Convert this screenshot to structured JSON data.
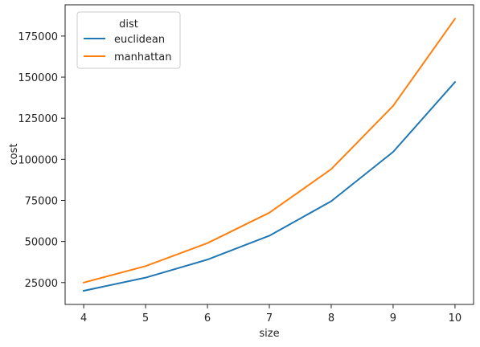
{
  "chart_data": {
    "type": "line",
    "xlabel": "size",
    "ylabel": "cost",
    "x": [
      4,
      5,
      6,
      7,
      8,
      9,
      10
    ],
    "xticks": [
      "4",
      "5",
      "6",
      "7",
      "8",
      "9",
      "10"
    ],
    "yticks": [
      25000,
      50000,
      75000,
      100000,
      125000,
      150000,
      175000
    ],
    "ytick_labels": [
      "25000",
      "50000",
      "75000",
      "100000",
      "125000",
      "150000",
      "175000"
    ],
    "xlim": [
      3.7,
      10.3
    ],
    "ylim": [
      11700,
      194000
    ],
    "grid": false,
    "legend": {
      "title": "dist",
      "placement": "top-left"
    },
    "series": [
      {
        "name": "euclidean",
        "color": "#1f77b4",
        "values": [
          20000,
          28000,
          39000,
          53500,
          74500,
          104500,
          147000
        ]
      },
      {
        "name": "manhattan",
        "color": "#ff7f0e",
        "values": [
          25000,
          35000,
          49000,
          67500,
          94000,
          132500,
          185500
        ]
      }
    ]
  }
}
